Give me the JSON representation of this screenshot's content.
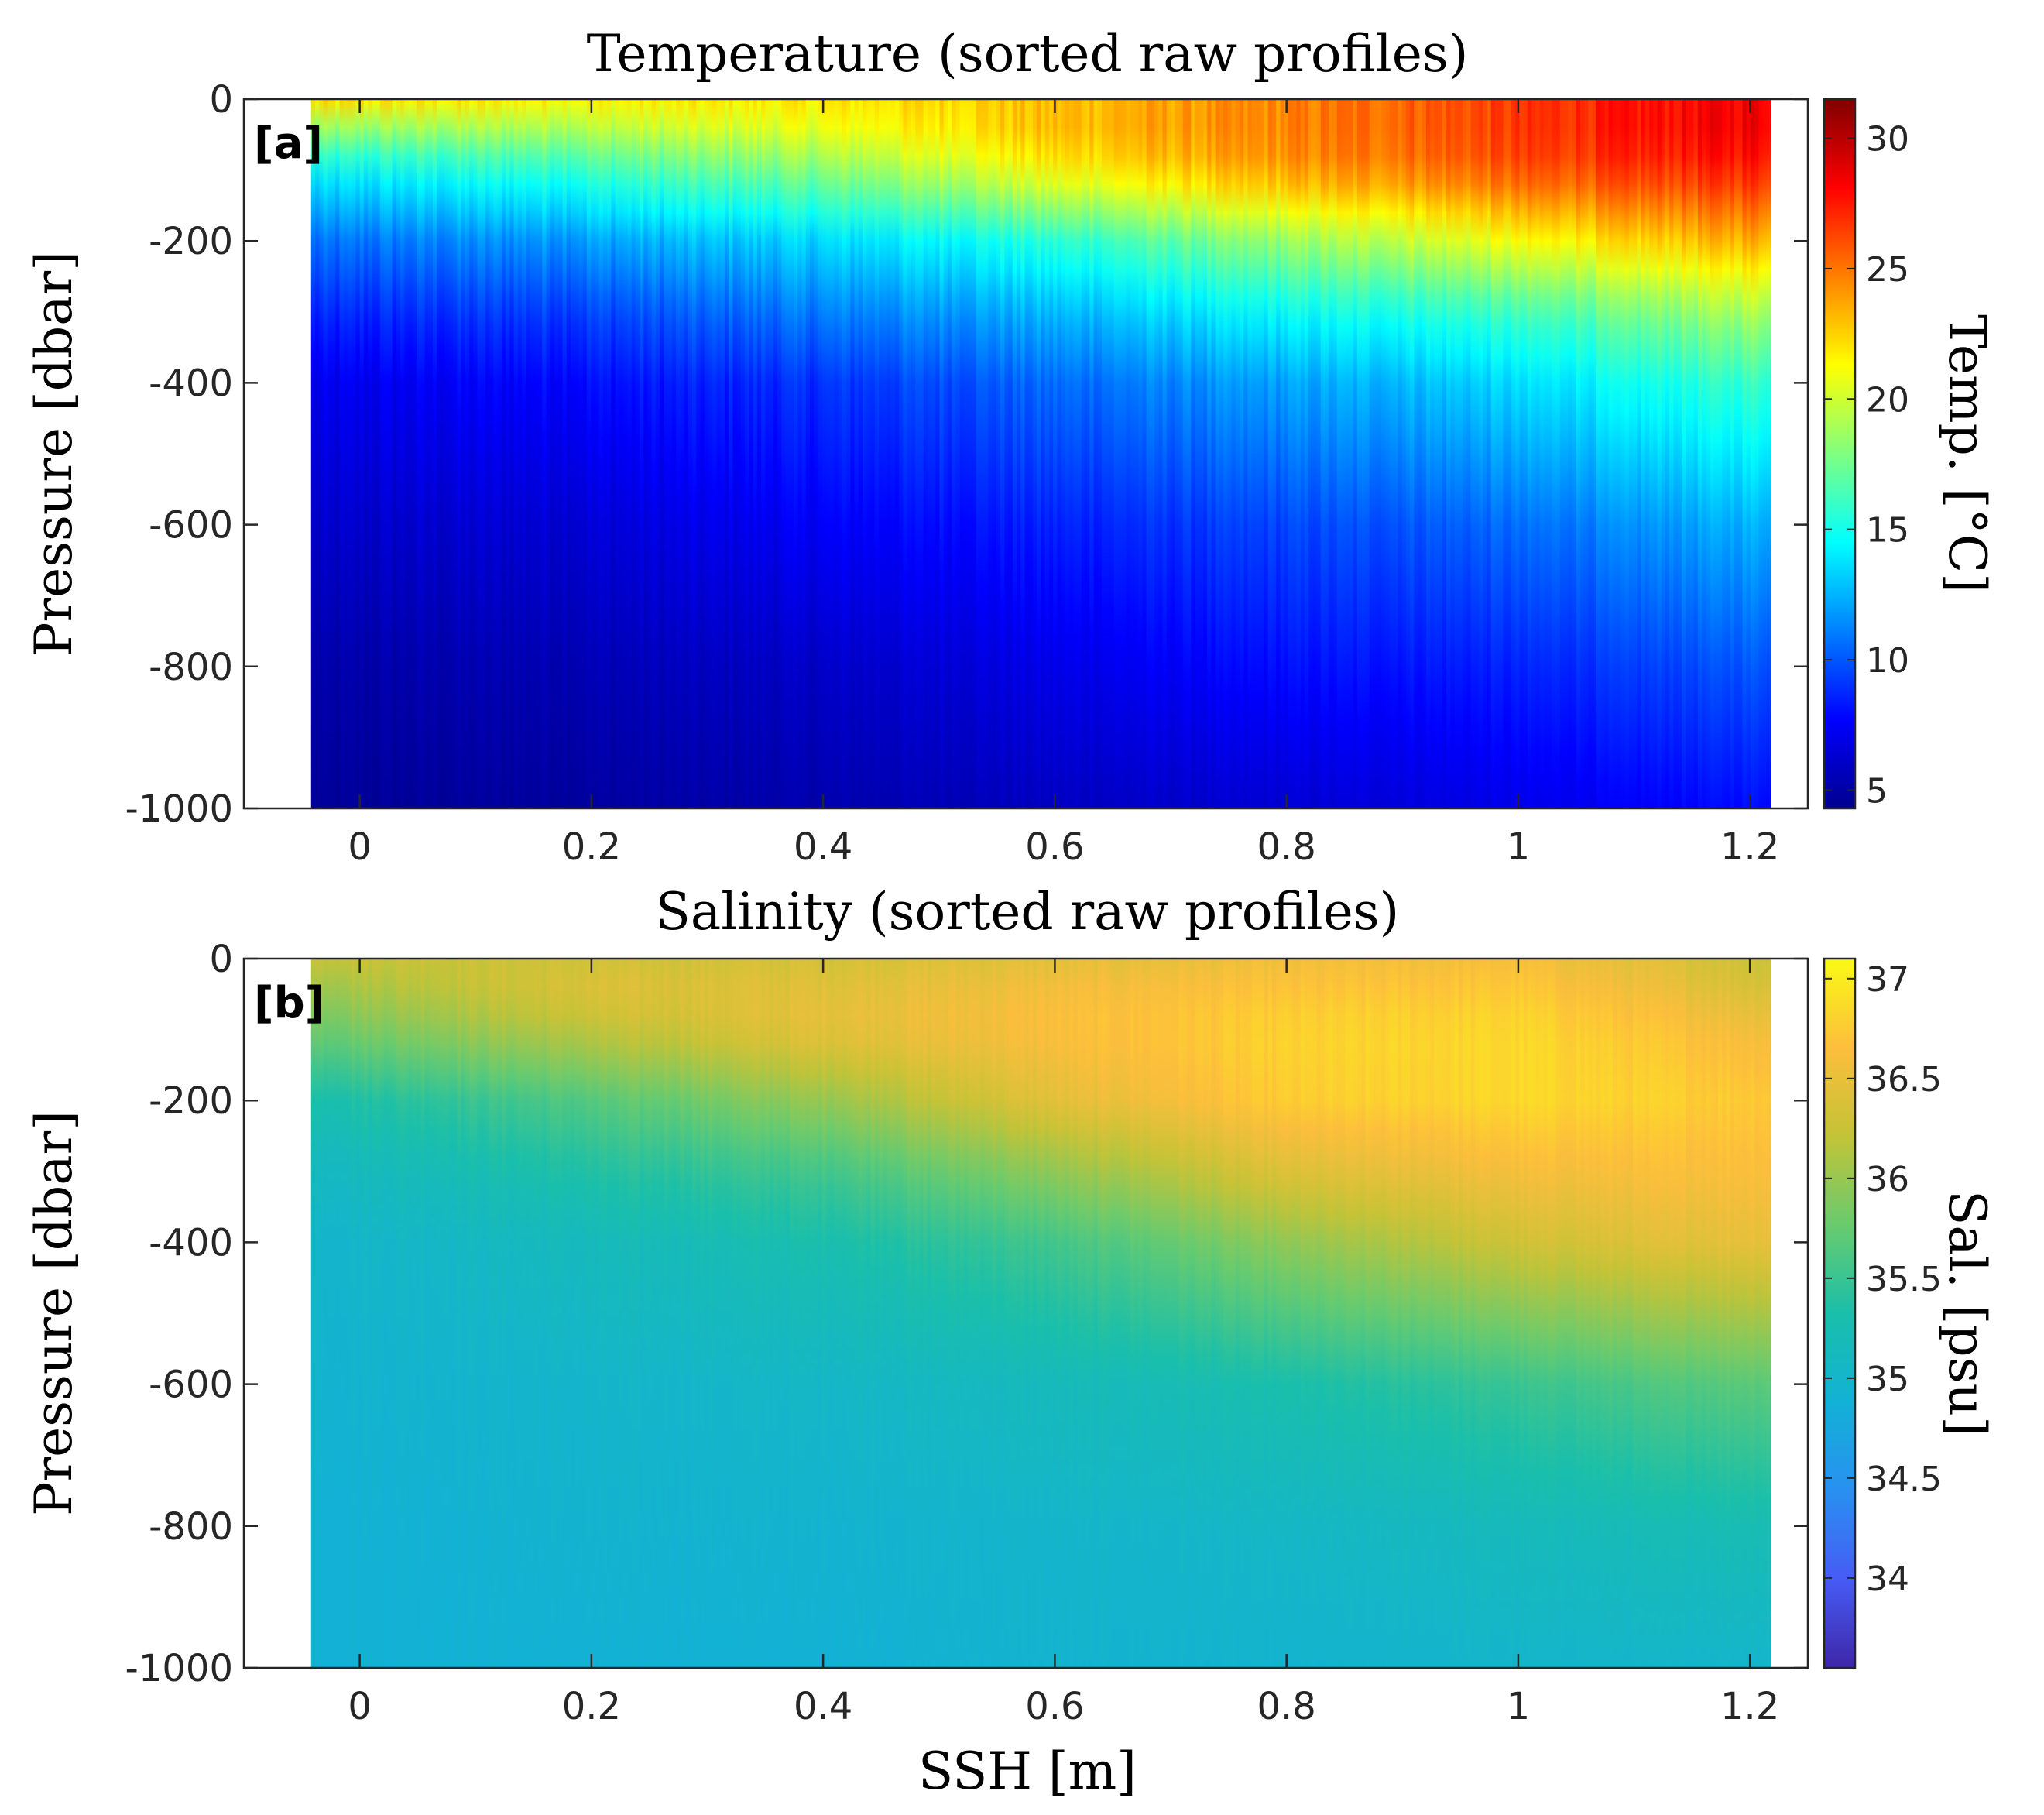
{
  "chart_data": [
    {
      "type": "heatmap",
      "panel_label": "[a]",
      "title": "Temperature (sorted raw profiles)",
      "xlabel": "",
      "ylabel": "Pressure [dbar]",
      "xlim": [
        -0.1,
        1.25
      ],
      "ylim": [
        -1000,
        0
      ],
      "x_data_extent": [
        -0.042,
        1.218
      ],
      "xticks": [
        0,
        0.2,
        0.4,
        0.6,
        0.8,
        1,
        1.2
      ],
      "xticklabels": [
        "0",
        "0.2",
        "0.4",
        "0.6",
        "0.8",
        "1",
        "1.2"
      ],
      "yticks": [
        0,
        -200,
        -400,
        -600,
        -800,
        -1000
      ],
      "yticklabels": [
        "0",
        "-200",
        "-400",
        "-600",
        "-800",
        "-1000"
      ],
      "colormap": "jet",
      "colorbar": {
        "label": "Temp. [°C]",
        "limits": [
          4.3,
          31.5
        ],
        "ticks": [
          5,
          10,
          15,
          20,
          25,
          30
        ],
        "ticklabels": [
          "5",
          "10",
          "15",
          "20",
          "25",
          "30"
        ]
      },
      "approx_profiles": {
        "ssh": [
          -0.04,
          0.2,
          0.4,
          0.6,
          0.8,
          1.0,
          1.2
        ],
        "pressure": [
          0,
          -50,
          -100,
          -200,
          -300,
          -400,
          -600,
          -800,
          -1000
        ],
        "values": [
          [
            22.0,
            21.5,
            21.8,
            23.0,
            24.5,
            26.5,
            28.5
          ],
          [
            17.5,
            19.0,
            20.5,
            23.0,
            24.5,
            26.5,
            28.5
          ],
          [
            14.0,
            16.0,
            18.0,
            21.5,
            24.0,
            26.0,
            27.5
          ],
          [
            10.5,
            12.0,
            13.5,
            15.5,
            18.5,
            21.0,
            23.5
          ],
          [
            8.5,
            9.5,
            11.0,
            12.5,
            14.5,
            16.0,
            19.0
          ],
          [
            7.0,
            8.0,
            9.0,
            10.5,
            12.0,
            13.5,
            16.0
          ],
          [
            6.0,
            6.5,
            7.5,
            8.5,
            9.5,
            10.5,
            12.5
          ],
          [
            5.0,
            5.5,
            6.0,
            7.0,
            8.0,
            8.5,
            10.0
          ],
          [
            4.5,
            4.8,
            5.2,
            5.8,
            6.3,
            7.0,
            8.0
          ]
        ]
      }
    },
    {
      "type": "heatmap",
      "panel_label": "[b]",
      "title": "Salinity (sorted raw profiles)",
      "xlabel": "SSH [m]",
      "ylabel": "Pressure [dbar]",
      "xlim": [
        -0.1,
        1.25
      ],
      "ylim": [
        -1000,
        0
      ],
      "x_data_extent": [
        -0.042,
        1.218
      ],
      "xticks": [
        0,
        0.2,
        0.4,
        0.6,
        0.8,
        1,
        1.2
      ],
      "xticklabels": [
        "0",
        "0.2",
        "0.4",
        "0.6",
        "0.8",
        "1",
        "1.2"
      ],
      "yticks": [
        0,
        -200,
        -400,
        -600,
        -800,
        -1000
      ],
      "yticklabels": [
        "0",
        "-200",
        "-400",
        "-600",
        "-800",
        "-1000"
      ],
      "colormap": "parula",
      "colorbar": {
        "label": "Sal. [psu]",
        "limits": [
          33.55,
          37.1
        ],
        "ticks": [
          34,
          34.5,
          35,
          35.5,
          36,
          36.5,
          37
        ],
        "ticklabels": [
          "34",
          "34.5",
          "35",
          "35.5",
          "36",
          "36.5",
          "37"
        ]
      },
      "approx_profiles": {
        "ssh": [
          -0.04,
          0.2,
          0.4,
          0.6,
          0.8,
          1.0,
          1.2
        ],
        "pressure": [
          0,
          -50,
          -100,
          -200,
          -300,
          -400,
          -600,
          -800,
          -1000
        ],
        "values": [
          [
            36.25,
            36.3,
            36.35,
            36.45,
            36.55,
            36.6,
            36.3
          ],
          [
            36.0,
            36.4,
            36.45,
            36.6,
            36.7,
            36.75,
            36.4
          ],
          [
            35.8,
            36.2,
            36.5,
            36.65,
            36.8,
            36.85,
            36.6
          ],
          [
            35.3,
            35.65,
            36.0,
            36.45,
            36.75,
            36.85,
            36.75
          ],
          [
            35.1,
            35.35,
            35.55,
            35.95,
            36.4,
            36.6,
            36.65
          ],
          [
            35.0,
            35.15,
            35.3,
            35.55,
            35.95,
            36.3,
            36.5
          ],
          [
            34.95,
            35.0,
            35.05,
            35.15,
            35.3,
            35.5,
            35.7
          ],
          [
            34.9,
            34.95,
            34.95,
            35.0,
            35.05,
            35.15,
            35.25
          ],
          [
            34.9,
            34.9,
            34.9,
            34.95,
            34.95,
            35.0,
            35.0
          ]
        ]
      }
    }
  ]
}
